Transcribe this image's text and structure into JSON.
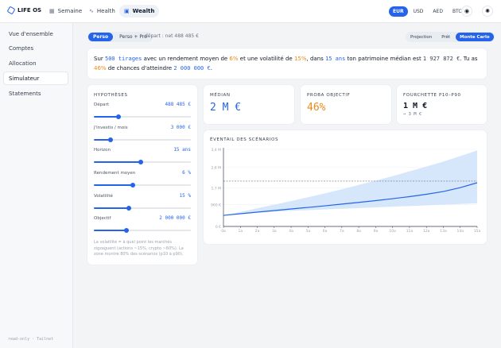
{
  "app": {
    "title": "LIFE OS"
  },
  "nav": {
    "tabs": [
      {
        "label": "Semaine",
        "icon": "calendar-icon"
      },
      {
        "label": "Health",
        "icon": "pulse-icon"
      },
      {
        "label": "Wealth",
        "icon": "wallet-icon"
      }
    ],
    "active": "Wealth"
  },
  "currencies": [
    "EUR",
    "USD",
    "AED",
    "BTC"
  ],
  "active_currency": "EUR",
  "sidebar": {
    "items": [
      {
        "label": "Vue d'ensemble"
      },
      {
        "label": "Comptes"
      },
      {
        "label": "Allocation"
      },
      {
        "label": "Simulateur"
      },
      {
        "label": "Statements"
      }
    ],
    "active": "Simulateur",
    "footer": "read-only · Tailnet"
  },
  "modes": [
    "Perso",
    "Perso + Pro"
  ],
  "active_mode": "Perso",
  "depart": "départ : net 488 485 €",
  "views": [
    "Projection",
    "Prêt",
    "Monte Carlo"
  ],
  "active_view": "Monte Carlo",
  "summary": {
    "t1": "Sur ",
    "tirages": "500 tirages",
    "t2": " avec un rendement moyen de ",
    "rendement": "6%",
    "t3": " et une volatilité de ",
    "volatilite": "15%",
    "t4": ", dans ",
    "duree": "15 ans",
    "t5": " ton patrimoine médian est ",
    "median": "1 927 872 €",
    "t6": ". Tu as ",
    "chance": "46%",
    "t7": " de chances d'atteindre ",
    "objectif": "2 000 000 €",
    "t8": "."
  },
  "hypotheses": {
    "title": "Hypothèses",
    "params": [
      {
        "label": "Départ",
        "value": "488 485 €",
        "fraction": 0.25
      },
      {
        "label": "J'investis / mois",
        "value": "3 000 €",
        "fraction": 0.17
      },
      {
        "label": "Horizon",
        "value": "15 ans",
        "fraction": 0.48
      },
      {
        "label": "Rendement moyen",
        "value": "6 %",
        "fraction": 0.4
      },
      {
        "label": "Volatilité",
        "value": "15 %",
        "fraction": 0.36
      },
      {
        "label": "Objectif",
        "value": "2 000 000 €",
        "fraction": 0.34
      }
    ],
    "note": "La volatilité = à quel point les marchés zigzaguent (actions ~15%, crypto ~60%). La zone montre 80% des scénarios (p10 à p90)."
  },
  "stats": {
    "median_label": "Médian",
    "median_value": "2 M €",
    "proba_label": "Proba objectif",
    "proba_value": "46%",
    "range_label": "Fourchette P10–P90",
    "range_low": "1 M €",
    "range_high": "→ 3 M €"
  },
  "colors": {
    "accent": "#2563eb",
    "orange": "#ea8a1a",
    "band": "#cfe3fa"
  },
  "chart_data": {
    "type": "area",
    "title": "Éventail des scénarios",
    "x": [
      "0a",
      "1a",
      "2a",
      "3a",
      "4a",
      "5a",
      "6a",
      "7a",
      "8a",
      "9a",
      "10a",
      "11a",
      "12a",
      "13a",
      "14a",
      "15a"
    ],
    "ytick_labels": [
      "0 €",
      "960 K",
      "1,7 M",
      "2,6 M",
      "3,4 M"
    ],
    "yticks": [
      0,
      960000,
      1700000,
      2600000,
      3400000
    ],
    "ylim": [
      0,
      3400000
    ],
    "series": [
      {
        "name": "p10",
        "values": [
          488485,
          560000,
          610000,
          650000,
          690000,
          720000,
          750000,
          780000,
          810000,
          840000,
          870000,
          900000,
          930000,
          960000,
          990000,
          1020000
        ]
      },
      {
        "name": "médian",
        "values": [
          488485,
          560000,
          630000,
          700000,
          770000,
          840000,
          910000,
          985000,
          1060000,
          1140000,
          1225000,
          1315000,
          1420000,
          1540000,
          1710000,
          1927872
        ]
      },
      {
        "name": "p90",
        "values": [
          488485,
          640000,
          800000,
          960000,
          1120000,
          1290000,
          1460000,
          1640000,
          1830000,
          2020000,
          2220000,
          2430000,
          2640000,
          2860000,
          3100000,
          3350000
        ]
      }
    ],
    "target": 2000000
  }
}
